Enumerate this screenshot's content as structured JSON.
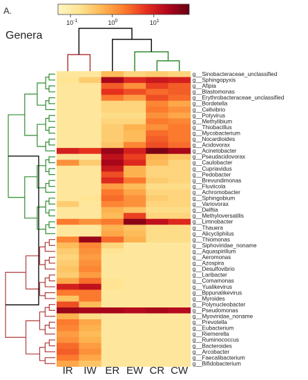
{
  "panel_label": "A.",
  "chart_title": "Genera",
  "colorscale": {
    "stops": [
      "#fff5c2",
      "#fee391",
      "#fdb754",
      "#fc7e2f",
      "#e6301e",
      "#b3071d",
      "#660012"
    ],
    "ticks": [
      {
        "base": "10",
        "exp": "-1",
        "log": -1
      },
      {
        "base": "10",
        "exp": "0",
        "log": 0
      },
      {
        "base": "10",
        "exp": "1",
        "log": 1
      }
    ],
    "range_log": [
      -1.3,
      1.85
    ]
  },
  "dendrogram_colors": {
    "cluster_a": "#2e8b2e",
    "cluster_b": "#b03a3a",
    "root": "#111111"
  },
  "chart_data": {
    "type": "heatmap",
    "title": "Genera",
    "columns": [
      "IR",
      "IW",
      "ER",
      "EW",
      "CR",
      "CW"
    ],
    "column_clusters": [
      [
        "IR",
        "IW"
      ],
      [
        "ER",
        "EW",
        "CR",
        "CW"
      ]
    ],
    "rows": [
      {
        "label": "g__Sinobacteraceae_unclassified",
        "cluster": "a",
        "values": [
          -0.9,
          -0.9,
          -0.3,
          -0.6,
          -0.5,
          -0.6
        ]
      },
      {
        "label": "g__Sphingopyxis",
        "cluster": "a",
        "values": [
          -0.8,
          -0.5,
          1.4,
          0.9,
          1.1,
          1.0
        ]
      },
      {
        "label": "g__Afipia",
        "cluster": "a",
        "values": [
          -0.9,
          -0.9,
          0.5,
          0.1,
          0.7,
          0.5
        ]
      },
      {
        "label": "g__Blastomonas",
        "cluster": "a",
        "values": [
          -0.9,
          -0.9,
          0.8,
          0.6,
          0.4,
          0.5
        ]
      },
      {
        "label": "g__Erythrobacteraceae_unclassified",
        "cluster": "a",
        "values": [
          -0.9,
          -0.9,
          0.3,
          0.0,
          0.6,
          0.4
        ]
      },
      {
        "label": "g__Bordetella",
        "cluster": "a",
        "values": [
          -0.9,
          -0.9,
          -0.6,
          -0.6,
          0.2,
          -0.1
        ]
      },
      {
        "label": "g__Cellvibrio",
        "cluster": "a",
        "values": [
          -0.9,
          -0.9,
          -0.6,
          -0.6,
          0.3,
          0.1
        ]
      },
      {
        "label": "g__Potyvirus",
        "cluster": "a",
        "values": [
          -0.9,
          -0.9,
          -0.7,
          -0.7,
          0.1,
          -0.1
        ]
      },
      {
        "label": "g__Methylibium",
        "cluster": "a",
        "values": [
          -0.9,
          -0.9,
          -0.6,
          -0.6,
          0.3,
          0.2
        ]
      },
      {
        "label": "g__Thiobacillus",
        "cluster": "a",
        "values": [
          -0.9,
          -0.9,
          -0.5,
          -0.2,
          0.1,
          0.3
        ]
      },
      {
        "label": "g__Mycobacterium",
        "cluster": "a",
        "values": [
          -0.9,
          -0.9,
          -0.5,
          -0.3,
          0.4,
          0.3
        ]
      },
      {
        "label": "g__Nocardioides",
        "cluster": "a",
        "values": [
          -0.9,
          -0.9,
          -0.5,
          -0.3,
          0.5,
          0.3
        ]
      },
      {
        "label": "g__Acidovorax",
        "cluster": "a",
        "values": [
          -0.9,
          -0.9,
          -0.4,
          0.2,
          0.6,
          0.4
        ]
      },
      {
        "label": "g__Acinetobacter",
        "cluster": "a",
        "values": [
          1.0,
          0.8,
          1.5,
          1.0,
          1.7,
          1.4
        ]
      },
      {
        "label": "g__Pseudacidovorax",
        "cluster": "a",
        "values": [
          -0.9,
          -0.9,
          1.2,
          0.7,
          -0.2,
          -0.4
        ]
      },
      {
        "label": "g__Caulobacter",
        "cluster": "a",
        "values": [
          0.1,
          -0.5,
          1.4,
          0.9,
          -0.3,
          -0.6
        ]
      },
      {
        "label": "g__Cupriavidus",
        "cluster": "a",
        "values": [
          -0.9,
          -0.9,
          1.1,
          -0.2,
          -0.6,
          -0.6
        ]
      },
      {
        "label": "g__Pedobacter",
        "cluster": "a",
        "values": [
          -0.9,
          -0.9,
          0.6,
          -0.2,
          -0.6,
          -0.6
        ]
      },
      {
        "label": "g__Brevundimonas",
        "cluster": "a",
        "values": [
          -0.9,
          -0.9,
          0.9,
          0.3,
          -0.5,
          -0.6
        ]
      },
      {
        "label": "g__Fluviicola",
        "cluster": "a",
        "values": [
          -0.9,
          -0.9,
          0.0,
          -0.3,
          -0.7,
          -0.7
        ]
      },
      {
        "label": "g__Achromobacter",
        "cluster": "a",
        "values": [
          -0.9,
          -0.9,
          0.3,
          -0.1,
          -0.6,
          -0.6
        ]
      },
      {
        "label": "g__Sphingobium",
        "cluster": "a",
        "values": [
          -0.9,
          -0.8,
          0.4,
          0.1,
          -0.5,
          -0.6
        ]
      },
      {
        "label": "g__Variovorax",
        "cluster": "a",
        "values": [
          -0.5,
          -0.9,
          0.2,
          0.1,
          -0.6,
          -0.6
        ]
      },
      {
        "label": "g__Delftia",
        "cluster": "a",
        "values": [
          -0.9,
          -0.9,
          -0.2,
          -0.4,
          -0.7,
          -0.7
        ]
      },
      {
        "label": "g__Methyloversatilis",
        "cluster": "a",
        "values": [
          -0.9,
          -0.9,
          -0.3,
          0.7,
          -0.6,
          -0.6
        ]
      },
      {
        "label": "g__Limnobacter",
        "cluster": "a",
        "values": [
          0.3,
          0.1,
          0.3,
          1.6,
          1.2,
          0.9
        ]
      },
      {
        "label": "g__Thauera",
        "cluster": "a",
        "values": [
          -0.9,
          -0.9,
          -0.2,
          -0.4,
          -0.7,
          -0.7
        ]
      },
      {
        "label": "g__Alicycliphilus",
        "cluster": "a",
        "values": [
          -0.9,
          -0.9,
          -0.1,
          -0.3,
          -0.7,
          -0.7
        ]
      },
      {
        "label": "g__Thiomonas",
        "cluster": "b",
        "values": [
          0.2,
          1.5,
          0.4,
          -0.2,
          -0.7,
          -0.7
        ]
      },
      {
        "label": "g__Siphoviridae_noname",
        "cluster": "b",
        "values": [
          -0.3,
          0.2,
          -0.6,
          -0.9,
          -0.9,
          -0.9
        ]
      },
      {
        "label": "g__Aquaspirillum",
        "cluster": "b",
        "values": [
          -0.5,
          0.1,
          -0.8,
          -0.9,
          -0.9,
          -0.9
        ]
      },
      {
        "label": "g__Aeromonas",
        "cluster": "b",
        "values": [
          -0.6,
          0.0,
          -0.9,
          -0.9,
          -0.9,
          -0.9
        ]
      },
      {
        "label": "g__Azospira",
        "cluster": "b",
        "values": [
          -0.5,
          0.1,
          -0.9,
          -0.9,
          -0.9,
          -0.9
        ]
      },
      {
        "label": "g__Desulfovibrio",
        "cluster": "b",
        "values": [
          -0.4,
          0.2,
          -0.9,
          -0.9,
          -0.9,
          -0.9
        ]
      },
      {
        "label": "g__Laribacter",
        "cluster": "b",
        "values": [
          -0.5,
          0.0,
          -0.9,
          -0.9,
          -0.9,
          -0.9
        ]
      },
      {
        "label": "g__Comamonas",
        "cluster": "b",
        "values": [
          -0.1,
          0.4,
          -0.8,
          -0.9,
          -0.9,
          -0.9
        ]
      },
      {
        "label": "g__Yualikevirus",
        "cluster": "b",
        "values": [
          1.0,
          1.2,
          -0.8,
          -0.9,
          -0.9,
          -0.9
        ]
      },
      {
        "label": "g__Bppunalikevirus",
        "cluster": "b",
        "values": [
          0.3,
          0.3,
          -0.9,
          -0.9,
          -0.9,
          -0.9
        ]
      },
      {
        "label": "g__Myroides",
        "cluster": "b",
        "values": [
          -0.4,
          0.3,
          -0.9,
          -0.9,
          -0.9,
          -0.9
        ]
      },
      {
        "label": "g__Polynucleobacter",
        "cluster": "b",
        "values": [
          0.6,
          -0.3,
          -0.9,
          -0.9,
          -0.9,
          -0.9
        ]
      },
      {
        "label": "g__Pseudomonas",
        "cluster": "b",
        "values": [
          1.5,
          1.4,
          1.4,
          1.3,
          1.4,
          1.3
        ]
      },
      {
        "label": "g__Myoviridae_noname",
        "cluster": "b",
        "values": [
          -0.2,
          -0.7,
          -0.9,
          -0.9,
          -0.9,
          -0.9
        ]
      },
      {
        "label": "g__Prevotella",
        "cluster": "b",
        "values": [
          0.3,
          -0.1,
          -0.9,
          -0.9,
          -0.9,
          -0.9
        ]
      },
      {
        "label": "g__Eubacterium",
        "cluster": "b",
        "values": [
          0.2,
          -0.2,
          -0.9,
          -0.9,
          -0.9,
          -0.9
        ]
      },
      {
        "label": "g__Riemerella",
        "cluster": "b",
        "values": [
          0.0,
          -0.3,
          -0.9,
          -0.9,
          -0.9,
          -0.9
        ]
      },
      {
        "label": "g__Ruminococcus",
        "cluster": "b",
        "values": [
          0.1,
          -0.2,
          -0.9,
          -0.9,
          -0.9,
          -0.9
        ]
      },
      {
        "label": "g__Bacteroides",
        "cluster": "b",
        "values": [
          0.4,
          0.0,
          -0.9,
          -0.9,
          -0.9,
          -0.9
        ]
      },
      {
        "label": "g__Arcobacter",
        "cluster": "b",
        "values": [
          0.5,
          0.1,
          -0.9,
          -0.9,
          -0.9,
          -0.9
        ]
      },
      {
        "label": "g__Faecalibacterium",
        "cluster": "b",
        "values": [
          0.3,
          -0.1,
          -0.9,
          -0.9,
          -0.9,
          -0.9
        ]
      },
      {
        "label": "g__Bifidobacterium",
        "cluster": "b",
        "values": [
          -0.1,
          -0.4,
          -0.9,
          -0.9,
          -0.9,
          -0.9
        ]
      }
    ]
  }
}
